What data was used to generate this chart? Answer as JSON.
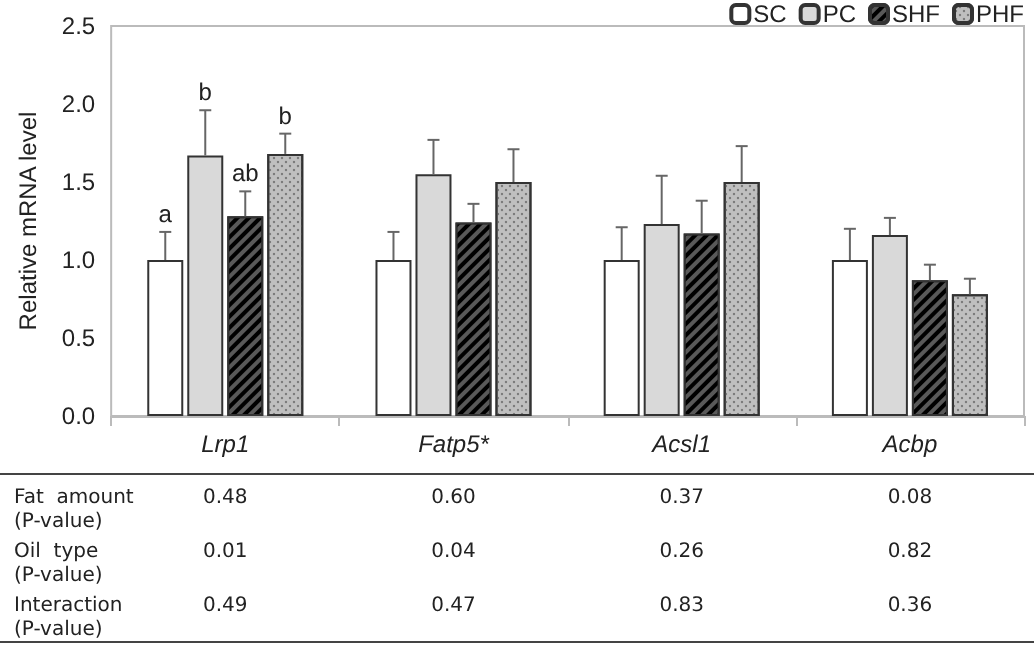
{
  "chart_data": {
    "type": "bar",
    "ylabel": "Relative mRNA level",
    "categories": [
      "Lrp1",
      "Fatp5*",
      "Acsl1",
      "Acbp"
    ],
    "series": [
      {
        "name": "SC",
        "color": "#ffffff",
        "values": [
          1.0,
          1.0,
          1.0,
          1.0
        ],
        "errors": [
          [
            1.0,
            1.18
          ],
          [
            1.0,
            1.18
          ],
          [
            1.0,
            1.21
          ],
          [
            1.0,
            1.2
          ]
        ],
        "value_labels": [
          "a",
          null,
          null,
          null
        ]
      },
      {
        "name": "PC",
        "color": "#d9d9d9",
        "values": [
          1.67,
          1.55,
          1.23,
          1.16
        ],
        "errors": [
          [
            1.67,
            1.96
          ],
          [
            1.55,
            1.77
          ],
          [
            1.23,
            1.54
          ],
          [
            1.16,
            1.27
          ]
        ],
        "value_labels": [
          "b",
          null,
          null,
          null
        ]
      },
      {
        "name": "SHF",
        "color": "#595959",
        "values": [
          1.28,
          1.24,
          1.17,
          0.87
        ],
        "errors": [
          [
            1.28,
            1.44
          ],
          [
            1.24,
            1.36
          ],
          [
            1.17,
            1.38
          ],
          [
            0.87,
            0.97
          ]
        ],
        "value_labels": [
          "ab",
          null,
          null,
          null
        ]
      },
      {
        "name": "PHF",
        "color": "#bfbfbf",
        "values": [
          1.68,
          1.5,
          1.5,
          0.78
        ],
        "errors": [
          [
            1.68,
            1.81
          ],
          [
            1.5,
            1.71
          ],
          [
            1.5,
            1.73
          ],
          [
            0.78,
            0.88
          ]
        ],
        "value_labels": [
          "b",
          null,
          null,
          null
        ]
      }
    ],
    "ylim": [
      0,
      2.5
    ],
    "yticks": [
      {
        "value": 0,
        "label": "0.0"
      },
      {
        "value": 0.5,
        "label": "0.5"
      },
      {
        "value": 1,
        "label": "1.0"
      },
      {
        "value": 1.5,
        "label": "1.5"
      },
      {
        "value": 2,
        "label": "2.0"
      },
      {
        "value": 2.5,
        "label": "2.5"
      }
    ],
    "grid": false,
    "legend": "top right",
    "annotations": [
      "Fat  amount\n(P-value)",
      "0.48",
      "0.60",
      "0.37",
      "0.08",
      "Oil  type\n(P-value)",
      "0.01",
      "0.04",
      "0.26",
      "0.82",
      "Interaction\n(P-value)",
      "0.49",
      "0.47",
      "0.83",
      "0.36"
    ]
  }
}
